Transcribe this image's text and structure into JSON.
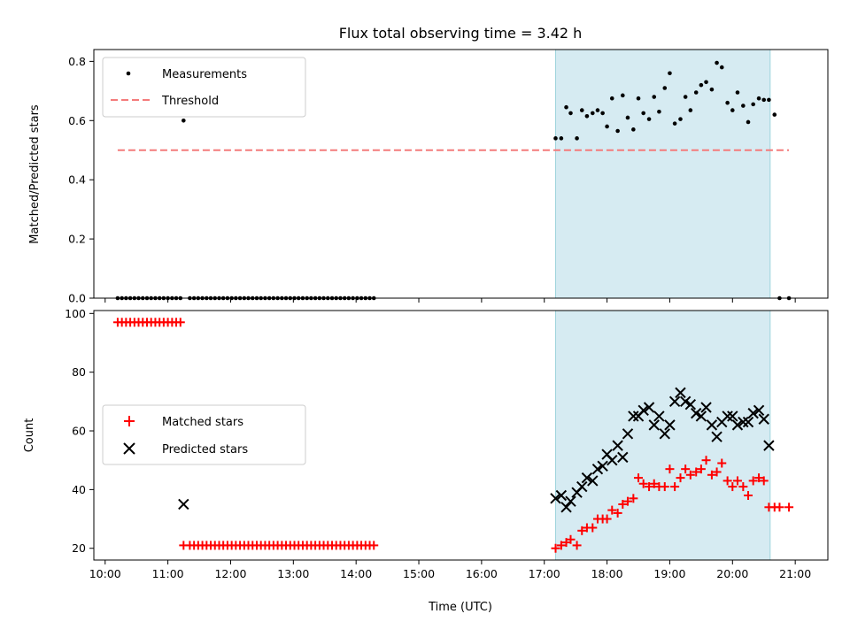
{
  "chart_data": [
    {
      "type": "scatter",
      "title": "Flux total observing time = 3.42 h",
      "xlabel": "",
      "ylabel": "Matched/Predicted stars",
      "xlim": [
        9.82,
        21.52
      ],
      "ylim": [
        0.0,
        0.84
      ],
      "yticks": [
        0.0,
        0.2,
        0.4,
        0.6,
        0.8
      ],
      "ytick_labels": [
        "0.0",
        "0.2",
        "0.4",
        "0.6",
        "0.8"
      ],
      "highlight_span": [
        17.18,
        20.6
      ],
      "legend": {
        "placement": "upper left",
        "entries": [
          "Measurements",
          "Threshold"
        ]
      },
      "threshold": {
        "name": "Threshold",
        "y": 0.5,
        "x": [
          10.2,
          20.9
        ],
        "color": "#f47b7b",
        "style": "dashed"
      },
      "series": [
        {
          "name": "Measurements",
          "color": "#000000",
          "marker": "dot",
          "x": [
            10.2,
            10.267,
            10.333,
            10.4,
            10.467,
            10.533,
            10.6,
            10.667,
            10.733,
            10.8,
            10.867,
            10.933,
            11.0,
            11.067,
            11.133,
            11.2,
            11.25,
            11.35,
            11.417,
            11.483,
            11.55,
            11.617,
            11.683,
            11.75,
            11.817,
            11.883,
            11.95,
            12.017,
            12.083,
            12.15,
            12.217,
            12.283,
            12.35,
            12.417,
            12.483,
            12.55,
            12.617,
            12.683,
            12.75,
            12.817,
            12.883,
            12.95,
            13.017,
            13.083,
            13.15,
            13.217,
            13.283,
            13.35,
            13.417,
            13.483,
            13.55,
            13.617,
            13.683,
            13.75,
            13.817,
            13.883,
            13.95,
            14.017,
            14.083,
            14.15,
            14.217,
            14.283,
            17.18,
            17.27,
            17.35,
            17.42,
            17.52,
            17.6,
            17.68,
            17.77,
            17.85,
            17.93,
            18.0,
            18.08,
            18.17,
            18.25,
            18.33,
            18.42,
            18.5,
            18.58,
            18.67,
            18.75,
            18.83,
            18.92,
            19.0,
            19.08,
            19.17,
            19.25,
            19.33,
            19.42,
            19.5,
            19.58,
            19.67,
            19.75,
            19.83,
            19.92,
            20.0,
            20.08,
            20.17,
            20.25,
            20.33,
            20.42,
            20.5,
            20.58,
            20.67,
            20.75,
            20.9
          ],
          "y": [
            0.0,
            0.0,
            0.0,
            0.0,
            0.0,
            0.0,
            0.0,
            0.0,
            0.0,
            0.0,
            0.0,
            0.0,
            0.0,
            0.0,
            0.0,
            0.0,
            0.6,
            0.0,
            0.0,
            0.0,
            0.0,
            0.0,
            0.0,
            0.0,
            0.0,
            0.0,
            0.0,
            0.0,
            0.0,
            0.0,
            0.0,
            0.0,
            0.0,
            0.0,
            0.0,
            0.0,
            0.0,
            0.0,
            0.0,
            0.0,
            0.0,
            0.0,
            0.0,
            0.0,
            0.0,
            0.0,
            0.0,
            0.0,
            0.0,
            0.0,
            0.0,
            0.0,
            0.0,
            0.0,
            0.0,
            0.0,
            0.0,
            0.0,
            0.0,
            0.0,
            0.0,
            0.0,
            0.54,
            0.54,
            0.645,
            0.625,
            0.54,
            0.635,
            0.615,
            0.625,
            0.635,
            0.625,
            0.58,
            0.675,
            0.565,
            0.685,
            0.61,
            0.57,
            0.675,
            0.625,
            0.605,
            0.68,
            0.63,
            0.71,
            0.76,
            0.59,
            0.605,
            0.68,
            0.635,
            0.695,
            0.72,
            0.73,
            0.705,
            0.795,
            0.78,
            0.66,
            0.635,
            0.695,
            0.65,
            0.595,
            0.655,
            0.675,
            0.67,
            0.67,
            0.62,
            0.0,
            0.0
          ]
        }
      ]
    },
    {
      "type": "scatter",
      "title": "",
      "xlabel": "Time (UTC)",
      "ylabel": "Count",
      "xlim": [
        9.82,
        21.52
      ],
      "ylim": [
        16.0,
        101.0
      ],
      "yticks": [
        20,
        40,
        60,
        80,
        100
      ],
      "ytick_labels": [
        "20",
        "40",
        "60",
        "80",
        "100"
      ],
      "xticks": [
        10,
        11,
        12,
        13,
        14,
        15,
        16,
        17,
        18,
        19,
        20,
        21
      ],
      "xtick_labels": [
        "10:00",
        "11:00",
        "12:00",
        "13:00",
        "14:00",
        "15:00",
        "16:00",
        "17:00",
        "18:00",
        "19:00",
        "20:00",
        "21:00"
      ],
      "highlight_span": [
        17.18,
        20.6
      ],
      "legend": {
        "placement": "center left",
        "entries": [
          "Matched stars",
          "Predicted stars"
        ]
      },
      "series": [
        {
          "name": "Matched stars",
          "color": "#ff0000",
          "marker": "plus",
          "x": [
            10.2,
            10.267,
            10.333,
            10.4,
            10.467,
            10.533,
            10.6,
            10.667,
            10.733,
            10.8,
            10.867,
            10.933,
            11.0,
            11.067,
            11.133,
            11.2,
            11.25,
            11.35,
            11.417,
            11.483,
            11.55,
            11.617,
            11.683,
            11.75,
            11.817,
            11.883,
            11.95,
            12.017,
            12.083,
            12.15,
            12.217,
            12.283,
            12.35,
            12.417,
            12.483,
            12.55,
            12.617,
            12.683,
            12.75,
            12.817,
            12.883,
            12.95,
            13.017,
            13.083,
            13.15,
            13.217,
            13.283,
            13.35,
            13.417,
            13.483,
            13.55,
            13.617,
            13.683,
            13.75,
            13.817,
            13.883,
            13.95,
            14.017,
            14.083,
            14.15,
            14.217,
            14.283,
            17.18,
            17.27,
            17.35,
            17.42,
            17.52,
            17.6,
            17.68,
            17.77,
            17.85,
            17.93,
            18.0,
            18.08,
            18.17,
            18.25,
            18.33,
            18.42,
            18.5,
            18.58,
            18.67,
            18.75,
            18.83,
            18.92,
            19.0,
            19.08,
            19.17,
            19.25,
            19.33,
            19.42,
            19.5,
            19.58,
            19.67,
            19.75,
            19.83,
            19.92,
            20.0,
            20.08,
            20.17,
            20.25,
            20.33,
            20.42,
            20.5,
            20.58,
            20.67,
            20.75,
            20.9
          ],
          "y": [
            97,
            97,
            97,
            97,
            97,
            97,
            97,
            97,
            97,
            97,
            97,
            97,
            97,
            97,
            97,
            97,
            21,
            21,
            21,
            21,
            21,
            21,
            21,
            21,
            21,
            21,
            21,
            21,
            21,
            21,
            21,
            21,
            21,
            21,
            21,
            21,
            21,
            21,
            21,
            21,
            21,
            21,
            21,
            21,
            21,
            21,
            21,
            21,
            21,
            21,
            21,
            21,
            21,
            21,
            21,
            21,
            21,
            21,
            21,
            21,
            21,
            21,
            20,
            21,
            22,
            23,
            21,
            26,
            27,
            27,
            30,
            30,
            30,
            33,
            32,
            35,
            36,
            37,
            44,
            42,
            41,
            42,
            41,
            41,
            47,
            41,
            44,
            47,
            45,
            46,
            47,
            50,
            45,
            46,
            49,
            43,
            41,
            43,
            41,
            38,
            43,
            44,
            43,
            34,
            34,
            34,
            34
          ]
        },
        {
          "name": "Predicted stars",
          "color": "#000000",
          "marker": "x",
          "x": [
            11.25,
            17.18,
            17.27,
            17.35,
            17.42,
            17.52,
            17.6,
            17.68,
            17.77,
            17.85,
            17.93,
            18.0,
            18.08,
            18.17,
            18.25,
            18.33,
            18.42,
            18.5,
            18.58,
            18.67,
            18.75,
            18.83,
            18.92,
            19.0,
            19.08,
            19.17,
            19.25,
            19.33,
            19.42,
            19.5,
            19.58,
            19.67,
            19.75,
            19.83,
            19.92,
            20.0,
            20.08,
            20.17,
            20.25,
            20.33,
            20.42,
            20.5,
            20.58
          ],
          "y": [
            35,
            37,
            38,
            34,
            36,
            39,
            41,
            44,
            43,
            47,
            48,
            52,
            50,
            55,
            51,
            59,
            65,
            65,
            67,
            68,
            62,
            65,
            59,
            62,
            70,
            73,
            70,
            69,
            66,
            65,
            68,
            62,
            58,
            63,
            65,
            65,
            62,
            63,
            63,
            66,
            67,
            64,
            55
          ]
        }
      ]
    }
  ]
}
